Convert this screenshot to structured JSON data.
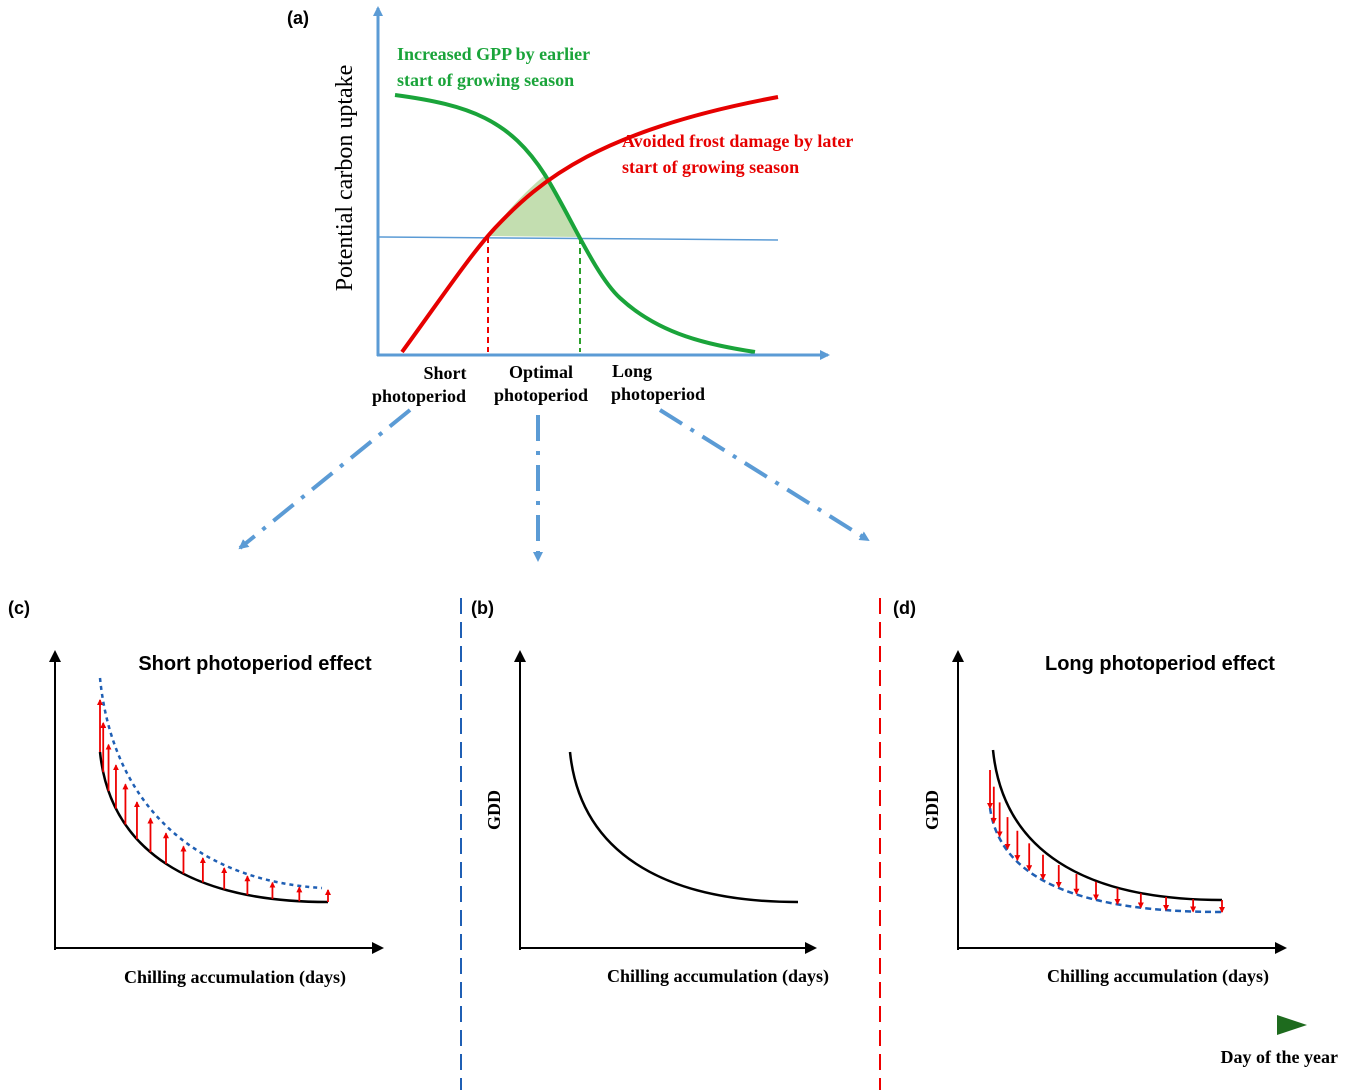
{
  "panel_a": {
    "label": "(a)",
    "y_axis_label": "Potential carbon uptake",
    "green_curve_label": [
      "Increased GPP by earlier",
      "start of growing season"
    ],
    "red_curve_label": [
      "Avoided frost damage by later",
      "start of growing season"
    ],
    "x_labels": [
      [
        "Short",
        "photoperiod"
      ],
      [
        "Optimal",
        "photoperiod"
      ],
      [
        "Long",
        "photoperiod"
      ]
    ]
  },
  "panel_c": {
    "label": "(c)",
    "title": "Short photoperiod effect",
    "x_axis_label": "Chilling accumulation (days)"
  },
  "panel_b": {
    "label": "(b)",
    "y_axis_label": "GDD",
    "x_axis_label": "Chilling accumulation (days)"
  },
  "panel_d": {
    "label": "(d)",
    "title": "Long photoperiod effect",
    "y_axis_label": "GDD",
    "x_axis_label": "Chilling accumulation (days)"
  },
  "timeline": {
    "label": "Day of the year"
  }
}
